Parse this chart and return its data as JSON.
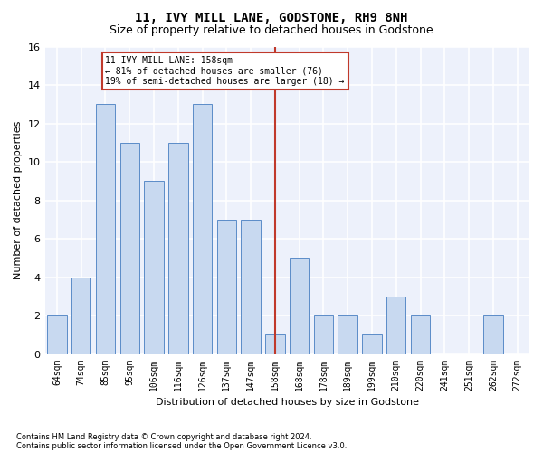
{
  "title": "11, IVY MILL LANE, GODSTONE, RH9 8NH",
  "subtitle": "Size of property relative to detached houses in Godstone",
  "xlabel": "Distribution of detached houses by size in Godstone",
  "ylabel": "Number of detached properties",
  "bin_labels": [
    "64sqm",
    "74sqm",
    "85sqm",
    "95sqm",
    "106sqm",
    "116sqm",
    "126sqm",
    "137sqm",
    "147sqm",
    "158sqm",
    "168sqm",
    "178sqm",
    "189sqm",
    "199sqm",
    "210sqm",
    "220sqm",
    "241sqm",
    "251sqm",
    "262sqm",
    "272sqm"
  ],
  "bar_values": [
    2,
    4,
    13,
    11,
    9,
    11,
    13,
    7,
    7,
    1,
    5,
    2,
    2,
    1,
    3,
    2,
    0,
    0,
    2,
    0
  ],
  "bar_color": "#c8d9f0",
  "bar_edge_color": "#5b8cc8",
  "vline_x_idx": 9,
  "vline_color": "#c0392b",
  "ylim": [
    0,
    16
  ],
  "yticks": [
    0,
    2,
    4,
    6,
    8,
    10,
    12,
    14,
    16
  ],
  "annotation_text": "11 IVY MILL LANE: 158sqm\n← 81% of detached houses are smaller (76)\n19% of semi-detached houses are larger (18) →",
  "annotation_box_color": "#c0392b",
  "footnote1": "Contains HM Land Registry data © Crown copyright and database right 2024.",
  "footnote2": "Contains public sector information licensed under the Open Government Licence v3.0.",
  "bg_color": "#edf1fb",
  "grid_color": "#ffffff",
  "title_fontsize": 10,
  "subtitle_fontsize": 9,
  "ylabel_fontsize": 8,
  "xlabel_fontsize": 8,
  "tick_fontsize": 7,
  "footnote_fontsize": 6
}
